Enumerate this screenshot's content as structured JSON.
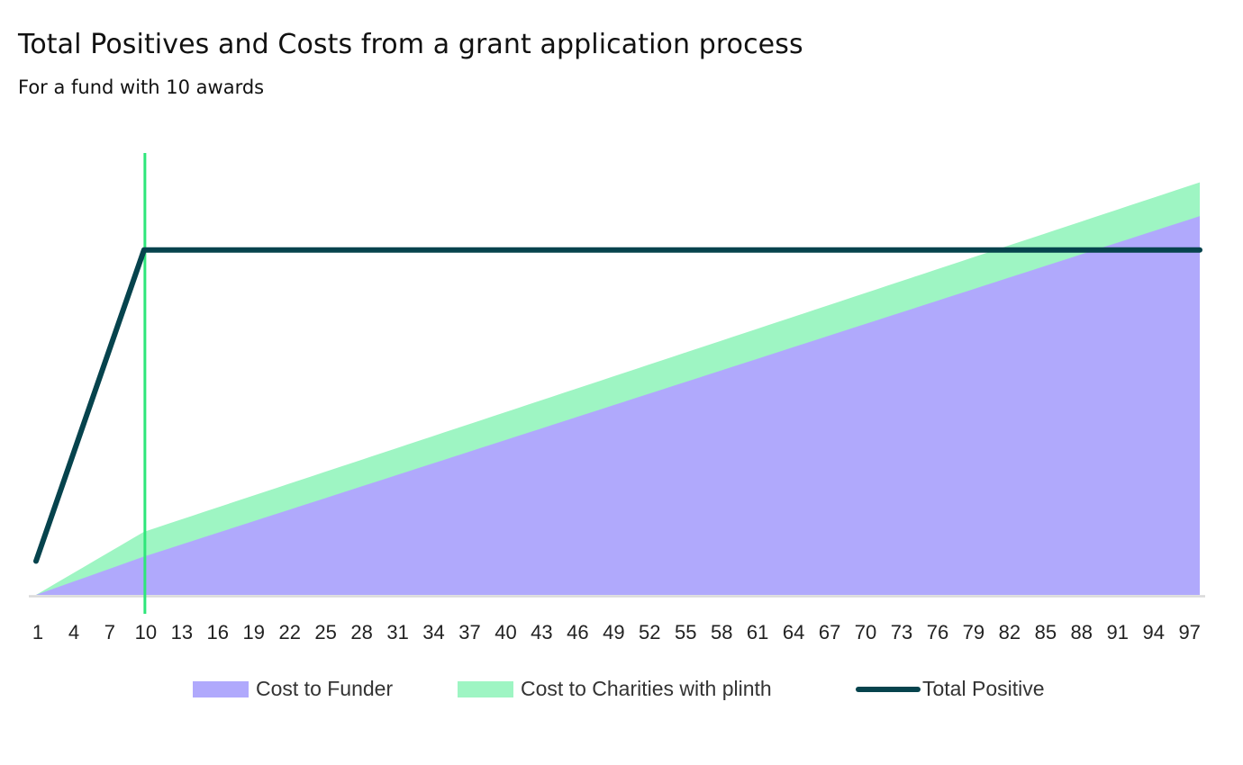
{
  "colors": {
    "funder": "#b0a9fc",
    "charities": "#9ef5c3",
    "total_positive": "#06434d",
    "marker": "#2ee67a",
    "axis": "#d9d9d9"
  },
  "chart_data": {
    "type": "area",
    "title": "Total Positives and Costs from a grant application process",
    "subtitle": "For a fund with 10 awards",
    "x_range": [
      1,
      98
    ],
    "x_tick_labels": [
      "1",
      "4",
      "7",
      "10",
      "13",
      "16",
      "19",
      "22",
      "25",
      "28",
      "31",
      "34",
      "37",
      "40",
      "43",
      "46",
      "49",
      "52",
      "55",
      "58",
      "61",
      "64",
      "67",
      "70",
      "73",
      "76",
      "79",
      "82",
      "85",
      "88",
      "91",
      "94",
      "97"
    ],
    "ylim": [
      0,
      100
    ],
    "marker_x": 10,
    "series": [
      {
        "name": "Cost to Funder",
        "kind": "stacked-area",
        "values_at": {
          "x": [
            1,
            10,
            98
          ],
          "y": [
            0,
            8.5,
            84
          ]
        }
      },
      {
        "name": "Cost to Charities with plinth",
        "kind": "stacked-area",
        "values_at": {
          "x": [
            1,
            10,
            98
          ],
          "y": [
            0,
            5.5,
            7.5
          ]
        }
      },
      {
        "name": "Total Positive",
        "kind": "line",
        "values_at": {
          "x": [
            1,
            10,
            98
          ],
          "y": [
            7.5,
            76.5,
            76.5
          ]
        }
      }
    ]
  },
  "legend": [
    {
      "label": "Cost to Funder"
    },
    {
      "label": "Cost to Charities with plinth"
    },
    {
      "label": "Total Positive"
    }
  ]
}
